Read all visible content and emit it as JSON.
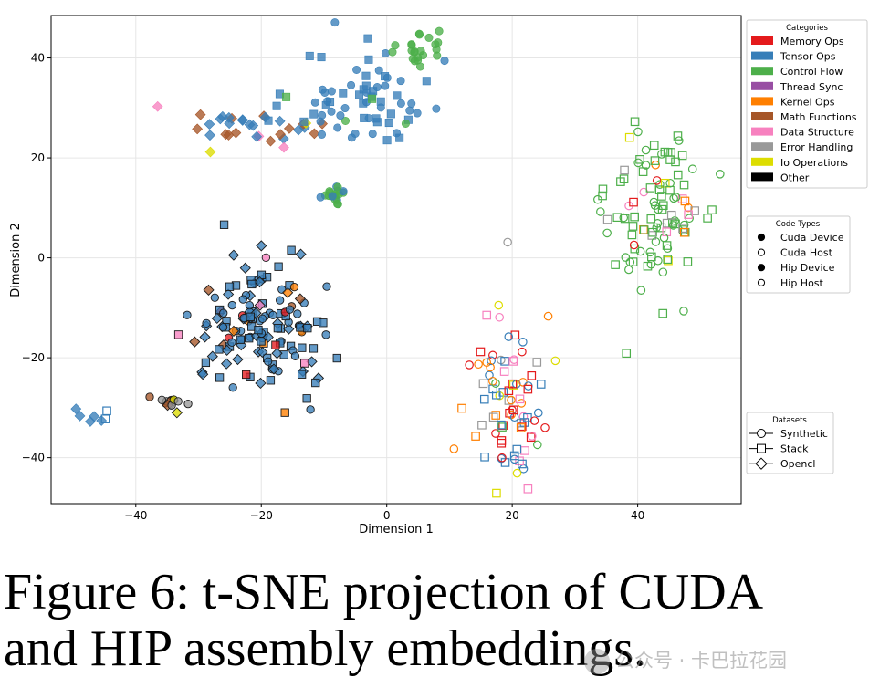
{
  "chart_data": {
    "type": "scatter",
    "xlabel": "Dimension 1",
    "ylabel": "Dimension 2",
    "xlim": [
      -53.5,
      56.5
    ],
    "ylim": [
      -49.2,
      48.5
    ],
    "xticks": [
      -40,
      -20,
      0,
      20,
      40
    ],
    "yticks": [
      -40,
      -20,
      0,
      20,
      40
    ],
    "xtick_labels": [
      "−40",
      "−20",
      "0",
      "20",
      "40"
    ],
    "ytick_labels": [
      "−40",
      "−20",
      "0",
      "20",
      "40"
    ],
    "grid": true,
    "legends": {
      "categories": {
        "title": "Categories",
        "placement": "top-right",
        "entries": [
          {
            "label": "Memory Ops",
            "color": "#e41a1c"
          },
          {
            "label": "Tensor Ops",
            "color": "#377eb8"
          },
          {
            "label": "Control Flow",
            "color": "#4daf4a"
          },
          {
            "label": "Thread Sync",
            "color": "#984ea3"
          },
          {
            "label": "Kernel Ops",
            "color": "#ff7f00"
          },
          {
            "label": "Math Functions",
            "color": "#a65628"
          },
          {
            "label": "Data Structure",
            "color": "#f781bf"
          },
          {
            "label": "Error Handling",
            "color": "#999999"
          },
          {
            "label": "Io Operations",
            "color": "#dddd00"
          },
          {
            "label": "Other",
            "color": "#000000"
          }
        ]
      },
      "code_types": {
        "title": "Code Types",
        "placement": "right",
        "entries": [
          {
            "label": "Cuda Device",
            "fill": "filled"
          },
          {
            "label": "Cuda Host",
            "fill": "hollow"
          },
          {
            "label": "Hip Device",
            "fill": "filled"
          },
          {
            "label": "Hip Host",
            "fill": "hollow"
          }
        ]
      },
      "datasets": {
        "title": "Datasets",
        "placement": "bottom-right",
        "entries": [
          {
            "label": "Synthetic",
            "marker": "circle"
          },
          {
            "label": "Stack",
            "marker": "square"
          },
          {
            "label": "Opencl",
            "marker": "diamond"
          }
        ]
      }
    },
    "clusters": [
      {
        "name": "device-upper-band",
        "center": [
          -22,
          26
        ],
        "spread": [
          6,
          2.2
        ],
        "n": 34,
        "markers": [
          "D"
        ],
        "fill": "filled",
        "weights": {
          "#377eb8": 0.55,
          "#a65628": 0.3,
          "#f781bf": 0.07,
          "#dddd00": 0.08
        }
      },
      {
        "name": "device-tensor-arc",
        "center": [
          -3,
          31
        ],
        "spread": [
          6,
          5
        ],
        "n": 70,
        "markers": [
          "s",
          "o"
        ],
        "fill": "filled",
        "weights": {
          "#377eb8": 0.92,
          "#4daf4a": 0.08
        }
      },
      {
        "name": "device-control-top",
        "center": [
          6,
          42
        ],
        "spread": [
          1.8,
          2
        ],
        "n": 22,
        "markers": [
          "o"
        ],
        "fill": "filled",
        "weights": {
          "#4daf4a": 1.0
        }
      },
      {
        "name": "device-small-center",
        "center": [
          -8,
          12.5
        ],
        "spread": [
          1.2,
          1.2
        ],
        "n": 20,
        "markers": [
          "o"
        ],
        "fill": "filled",
        "weights": {
          "#4daf4a": 0.8,
          "#377eb8": 0.2
        }
      },
      {
        "name": "device-central-mass",
        "center": [
          -20,
          -13
        ],
        "spread": [
          5.5,
          7
        ],
        "n": 150,
        "markers": [
          "s",
          "D",
          "o"
        ],
        "fill": "filled",
        "outlined": true,
        "weights": {
          "#377eb8": 0.83,
          "#a65628": 0.07,
          "#f781bf": 0.04,
          "#ff7f00": 0.03,
          "#e41a1c": 0.03
        }
      },
      {
        "name": "device-small-left",
        "center": [
          -34,
          -29
        ],
        "spread": [
          1.4,
          1.1
        ],
        "n": 16,
        "markers": [
          "D",
          "o"
        ],
        "fill": "filled",
        "outlined": true,
        "weights": {
          "#999999": 0.55,
          "#a65628": 0.2,
          "#dddd00": 0.15,
          "#377eb8": 0.1
        }
      },
      {
        "name": "device-far-left",
        "center": [
          -46,
          -32
        ],
        "spread": [
          2.5,
          0.8
        ],
        "n": 7,
        "markers": [
          "s",
          "D"
        ],
        "fill": "mixed",
        "weights": {
          "#377eb8": 1.0
        }
      },
      {
        "name": "host-right",
        "center": [
          43,
          9
        ],
        "spread": [
          4,
          7.5
        ],
        "n": 110,
        "markers": [
          "o",
          "s"
        ],
        "fill": "hollow",
        "weights": {
          "#4daf4a": 0.73,
          "#999999": 0.1,
          "#e41a1c": 0.05,
          "#f781bf": 0.05,
          "#ff7f00": 0.04,
          "#dddd00": 0.03
        }
      },
      {
        "name": "host-bottom",
        "center": [
          20,
          -28
        ],
        "spread": [
          3,
          8
        ],
        "n": 90,
        "markers": [
          "o",
          "s"
        ],
        "fill": "hollow",
        "weights": {
          "#377eb8": 0.22,
          "#e41a1c": 0.17,
          "#dddd00": 0.15,
          "#ff7f00": 0.15,
          "#999999": 0.13,
          "#f781bf": 0.13,
          "#4daf4a": 0.05
        }
      }
    ]
  },
  "caption": {
    "line1": "Figure 6:  t-SNE projection of CUDA",
    "line2": "and HIP assembly embeddings."
  },
  "watermark": "公众号 · 卡巴拉花园"
}
